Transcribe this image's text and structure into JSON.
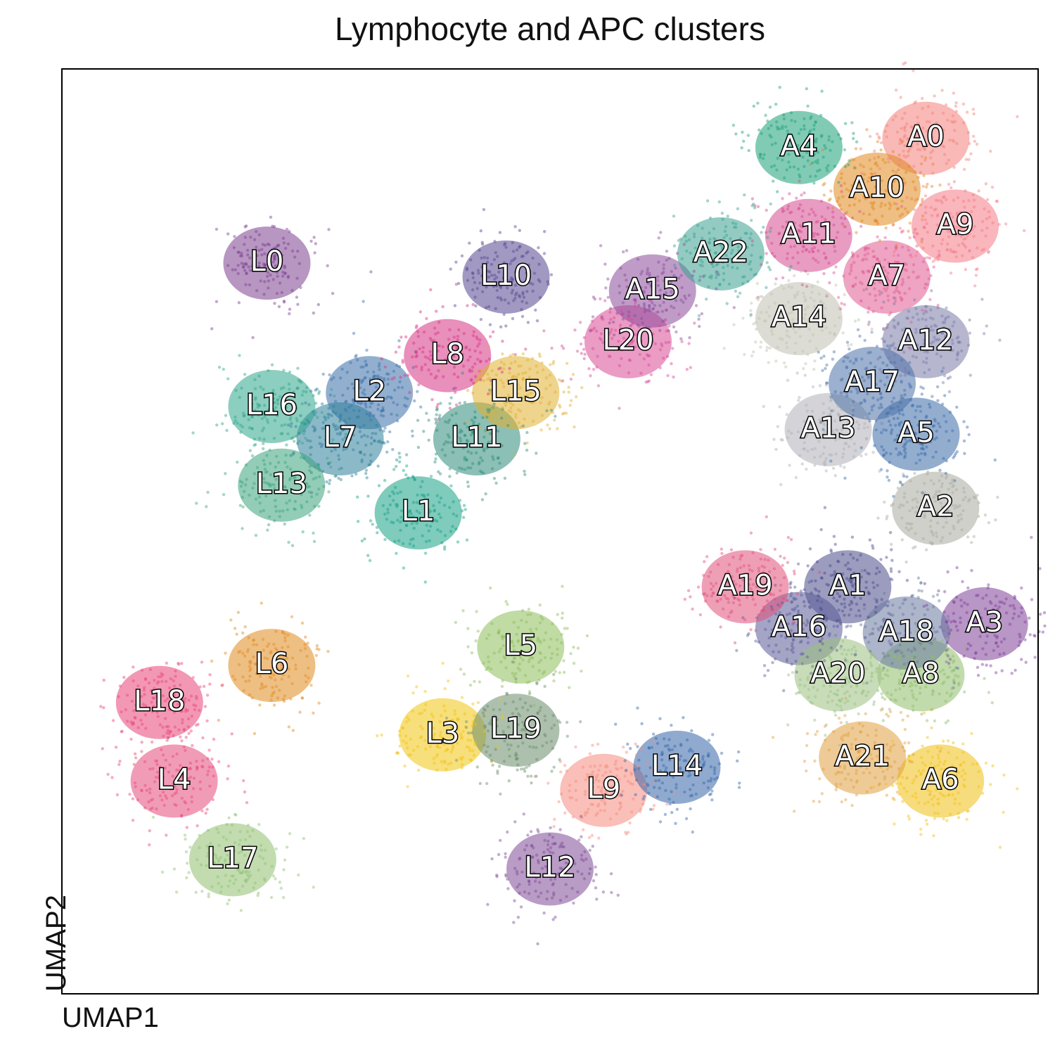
{
  "chart_data": {
    "type": "scatter",
    "title": "Lymphocyte and APC clusters",
    "xlabel": "UMAP1",
    "ylabel": "UMAP2",
    "xlim": [
      0,
      100
    ],
    "ylim": [
      0,
      100
    ],
    "ticks": "none",
    "grid": false,
    "legend": "on-data labels",
    "clusters": [
      {
        "name": "L0",
        "x": 21.0,
        "y": 79.0,
        "color": "#7b3f8f"
      },
      {
        "name": "L1",
        "x": 36.5,
        "y": 52.0,
        "color": "#16a085"
      },
      {
        "name": "L2",
        "x": 31.5,
        "y": 65.0,
        "color": "#3a6ea8"
      },
      {
        "name": "L3",
        "x": 39.0,
        "y": 28.0,
        "color": "#f1c40f"
      },
      {
        "name": "L4",
        "x": 11.5,
        "y": 23.0,
        "color": "#e64a7a"
      },
      {
        "name": "L5",
        "x": 47.0,
        "y": 37.5,
        "color": "#8dbd5a"
      },
      {
        "name": "L6",
        "x": 21.5,
        "y": 35.5,
        "color": "#e08a1e"
      },
      {
        "name": "L7",
        "x": 28.5,
        "y": 60.0,
        "color": "#2e7f9a"
      },
      {
        "name": "L8",
        "x": 39.5,
        "y": 69.0,
        "color": "#d63384"
      },
      {
        "name": "L9",
        "x": 55.5,
        "y": 22.0,
        "color": "#f58b7d"
      },
      {
        "name": "L10",
        "x": 45.5,
        "y": 77.5,
        "color": "#55458f"
      },
      {
        "name": "L11",
        "x": 42.5,
        "y": 60.0,
        "color": "#2e8b7a"
      },
      {
        "name": "L12",
        "x": 50.0,
        "y": 13.5,
        "color": "#7d4a95"
      },
      {
        "name": "L13",
        "x": 22.5,
        "y": 55.0,
        "color": "#3aa37c"
      },
      {
        "name": "L14",
        "x": 63.0,
        "y": 24.5,
        "color": "#3565a8"
      },
      {
        "name": "L15",
        "x": 46.5,
        "y": 65.0,
        "color": "#e0b030"
      },
      {
        "name": "L16",
        "x": 21.5,
        "y": 63.5,
        "color": "#2ea58a"
      },
      {
        "name": "L17",
        "x": 17.5,
        "y": 14.5,
        "color": "#90c070"
      },
      {
        "name": "L18",
        "x": 10.0,
        "y": 31.5,
        "color": "#e84478"
      },
      {
        "name": "L19",
        "x": 46.5,
        "y": 28.5,
        "color": "#6a8c6a"
      },
      {
        "name": "L20",
        "x": 58.0,
        "y": 70.5,
        "color": "#d94a95"
      },
      {
        "name": "A0",
        "x": 88.5,
        "y": 92.5,
        "color": "#f4807a"
      },
      {
        "name": "A1",
        "x": 80.5,
        "y": 44.0,
        "color": "#4a4a8a"
      },
      {
        "name": "A2",
        "x": 89.5,
        "y": 52.5,
        "color": "#a9aaa0"
      },
      {
        "name": "A3",
        "x": 94.5,
        "y": 40.0,
        "color": "#7e3f98"
      },
      {
        "name": "A4",
        "x": 75.5,
        "y": 91.5,
        "color": "#1aa078"
      },
      {
        "name": "A5",
        "x": 87.5,
        "y": 60.5,
        "color": "#3a6aa8"
      },
      {
        "name": "A6",
        "x": 90.0,
        "y": 23.0,
        "color": "#f1c012"
      },
      {
        "name": "A7",
        "x": 84.5,
        "y": 77.5,
        "color": "#e05a90"
      },
      {
        "name": "A8",
        "x": 88.0,
        "y": 34.5,
        "color": "#8fbd6a"
      },
      {
        "name": "A9",
        "x": 91.5,
        "y": 83.0,
        "color": "#f47a85"
      },
      {
        "name": "A10",
        "x": 83.5,
        "y": 87.0,
        "color": "#e0881e"
      },
      {
        "name": "A11",
        "x": 76.5,
        "y": 82.0,
        "color": "#d64a90"
      },
      {
        "name": "A12",
        "x": 88.5,
        "y": 70.5,
        "color": "#7a7aa8"
      },
      {
        "name": "A13",
        "x": 78.5,
        "y": 61.0,
        "color": "#b0b0b8"
      },
      {
        "name": "A14",
        "x": 75.5,
        "y": 73.0,
        "color": "#c0c0b0"
      },
      {
        "name": "A15",
        "x": 60.5,
        "y": 76.0,
        "color": "#8a4a9a"
      },
      {
        "name": "A16",
        "x": 75.5,
        "y": 39.5,
        "color": "#5a5a98"
      },
      {
        "name": "A17",
        "x": 83.0,
        "y": 66.0,
        "color": "#4a70a8"
      },
      {
        "name": "A18",
        "x": 86.5,
        "y": 39.0,
        "color": "#6a78a0"
      },
      {
        "name": "A19",
        "x": 70.0,
        "y": 44.0,
        "color": "#e0507a"
      },
      {
        "name": "A20",
        "x": 79.5,
        "y": 34.5,
        "color": "#9ac080"
      },
      {
        "name": "A21",
        "x": 82.0,
        "y": 25.5,
        "color": "#e0a040"
      },
      {
        "name": "A22",
        "x": 67.5,
        "y": 80.0,
        "color": "#3aa090"
      }
    ]
  }
}
